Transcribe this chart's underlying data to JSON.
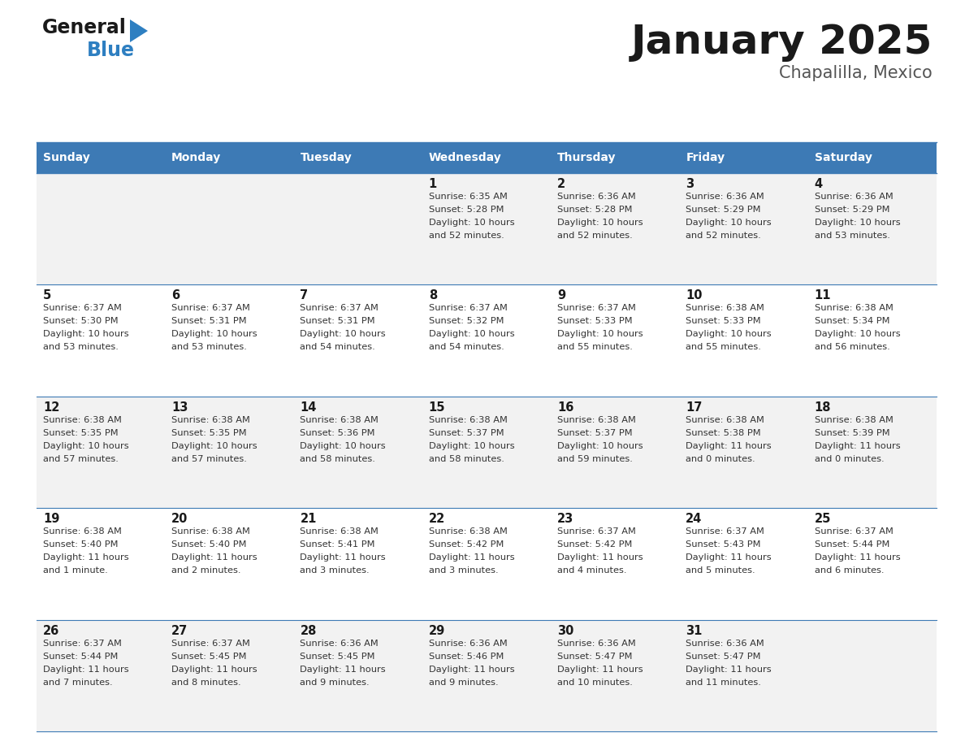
{
  "title": "January 2025",
  "subtitle": "Chapalilla, Mexico",
  "days_of_week": [
    "Sunday",
    "Monday",
    "Tuesday",
    "Wednesday",
    "Thursday",
    "Friday",
    "Saturday"
  ],
  "header_bg": "#3D7AB5",
  "header_text": "#FFFFFF",
  "row_bg_even": "#F2F2F2",
  "row_bg_odd": "#FFFFFF",
  "cell_text_color": "#333333",
  "day_num_color": "#1A1A1A",
  "border_color": "#3D7AB5",
  "title_color": "#1A1A1A",
  "subtitle_color": "#555555",
  "logo_general_color": "#1A1A1A",
  "logo_blue_color": "#2E7FC1",
  "calendar_data": [
    {
      "day": 1,
      "col": 3,
      "row": 0,
      "sunrise": "6:35 AM",
      "sunset": "5:28 PM",
      "daylight_hours": 10,
      "daylight_minutes": 52
    },
    {
      "day": 2,
      "col": 4,
      "row": 0,
      "sunrise": "6:36 AM",
      "sunset": "5:28 PM",
      "daylight_hours": 10,
      "daylight_minutes": 52
    },
    {
      "day": 3,
      "col": 5,
      "row": 0,
      "sunrise": "6:36 AM",
      "sunset": "5:29 PM",
      "daylight_hours": 10,
      "daylight_minutes": 52
    },
    {
      "day": 4,
      "col": 6,
      "row": 0,
      "sunrise": "6:36 AM",
      "sunset": "5:29 PM",
      "daylight_hours": 10,
      "daylight_minutes": 53
    },
    {
      "day": 5,
      "col": 0,
      "row": 1,
      "sunrise": "6:37 AM",
      "sunset": "5:30 PM",
      "daylight_hours": 10,
      "daylight_minutes": 53
    },
    {
      "day": 6,
      "col": 1,
      "row": 1,
      "sunrise": "6:37 AM",
      "sunset": "5:31 PM",
      "daylight_hours": 10,
      "daylight_minutes": 53
    },
    {
      "day": 7,
      "col": 2,
      "row": 1,
      "sunrise": "6:37 AM",
      "sunset": "5:31 PM",
      "daylight_hours": 10,
      "daylight_minutes": 54
    },
    {
      "day": 8,
      "col": 3,
      "row": 1,
      "sunrise": "6:37 AM",
      "sunset": "5:32 PM",
      "daylight_hours": 10,
      "daylight_minutes": 54
    },
    {
      "day": 9,
      "col": 4,
      "row": 1,
      "sunrise": "6:37 AM",
      "sunset": "5:33 PM",
      "daylight_hours": 10,
      "daylight_minutes": 55
    },
    {
      "day": 10,
      "col": 5,
      "row": 1,
      "sunrise": "6:38 AM",
      "sunset": "5:33 PM",
      "daylight_hours": 10,
      "daylight_minutes": 55
    },
    {
      "day": 11,
      "col": 6,
      "row": 1,
      "sunrise": "6:38 AM",
      "sunset": "5:34 PM",
      "daylight_hours": 10,
      "daylight_minutes": 56
    },
    {
      "day": 12,
      "col": 0,
      "row": 2,
      "sunrise": "6:38 AM",
      "sunset": "5:35 PM",
      "daylight_hours": 10,
      "daylight_minutes": 57
    },
    {
      "day": 13,
      "col": 1,
      "row": 2,
      "sunrise": "6:38 AM",
      "sunset": "5:35 PM",
      "daylight_hours": 10,
      "daylight_minutes": 57
    },
    {
      "day": 14,
      "col": 2,
      "row": 2,
      "sunrise": "6:38 AM",
      "sunset": "5:36 PM",
      "daylight_hours": 10,
      "daylight_minutes": 58
    },
    {
      "day": 15,
      "col": 3,
      "row": 2,
      "sunrise": "6:38 AM",
      "sunset": "5:37 PM",
      "daylight_hours": 10,
      "daylight_minutes": 58
    },
    {
      "day": 16,
      "col": 4,
      "row": 2,
      "sunrise": "6:38 AM",
      "sunset": "5:37 PM",
      "daylight_hours": 10,
      "daylight_minutes": 59
    },
    {
      "day": 17,
      "col": 5,
      "row": 2,
      "sunrise": "6:38 AM",
      "sunset": "5:38 PM",
      "daylight_hours": 11,
      "daylight_minutes": 0
    },
    {
      "day": 18,
      "col": 6,
      "row": 2,
      "sunrise": "6:38 AM",
      "sunset": "5:39 PM",
      "daylight_hours": 11,
      "daylight_minutes": 0
    },
    {
      "day": 19,
      "col": 0,
      "row": 3,
      "sunrise": "6:38 AM",
      "sunset": "5:40 PM",
      "daylight_hours": 11,
      "daylight_minutes": 1
    },
    {
      "day": 20,
      "col": 1,
      "row": 3,
      "sunrise": "6:38 AM",
      "sunset": "5:40 PM",
      "daylight_hours": 11,
      "daylight_minutes": 2
    },
    {
      "day": 21,
      "col": 2,
      "row": 3,
      "sunrise": "6:38 AM",
      "sunset": "5:41 PM",
      "daylight_hours": 11,
      "daylight_minutes": 3
    },
    {
      "day": 22,
      "col": 3,
      "row": 3,
      "sunrise": "6:38 AM",
      "sunset": "5:42 PM",
      "daylight_hours": 11,
      "daylight_minutes": 3
    },
    {
      "day": 23,
      "col": 4,
      "row": 3,
      "sunrise": "6:37 AM",
      "sunset": "5:42 PM",
      "daylight_hours": 11,
      "daylight_minutes": 4
    },
    {
      "day": 24,
      "col": 5,
      "row": 3,
      "sunrise": "6:37 AM",
      "sunset": "5:43 PM",
      "daylight_hours": 11,
      "daylight_minutes": 5
    },
    {
      "day": 25,
      "col": 6,
      "row": 3,
      "sunrise": "6:37 AM",
      "sunset": "5:44 PM",
      "daylight_hours": 11,
      "daylight_minutes": 6
    },
    {
      "day": 26,
      "col": 0,
      "row": 4,
      "sunrise": "6:37 AM",
      "sunset": "5:44 PM",
      "daylight_hours": 11,
      "daylight_minutes": 7
    },
    {
      "day": 27,
      "col": 1,
      "row": 4,
      "sunrise": "6:37 AM",
      "sunset": "5:45 PM",
      "daylight_hours": 11,
      "daylight_minutes": 8
    },
    {
      "day": 28,
      "col": 2,
      "row": 4,
      "sunrise": "6:36 AM",
      "sunset": "5:45 PM",
      "daylight_hours": 11,
      "daylight_minutes": 9
    },
    {
      "day": 29,
      "col": 3,
      "row": 4,
      "sunrise": "6:36 AM",
      "sunset": "5:46 PM",
      "daylight_hours": 11,
      "daylight_minutes": 9
    },
    {
      "day": 30,
      "col": 4,
      "row": 4,
      "sunrise": "6:36 AM",
      "sunset": "5:47 PM",
      "daylight_hours": 11,
      "daylight_minutes": 10
    },
    {
      "day": 31,
      "col": 5,
      "row": 4,
      "sunrise": "6:36 AM",
      "sunset": "5:47 PM",
      "daylight_hours": 11,
      "daylight_minutes": 11
    }
  ],
  "num_rows": 5,
  "num_cols": 7,
  "fig_width": 11.88,
  "fig_height": 9.18,
  "dpi": 100
}
